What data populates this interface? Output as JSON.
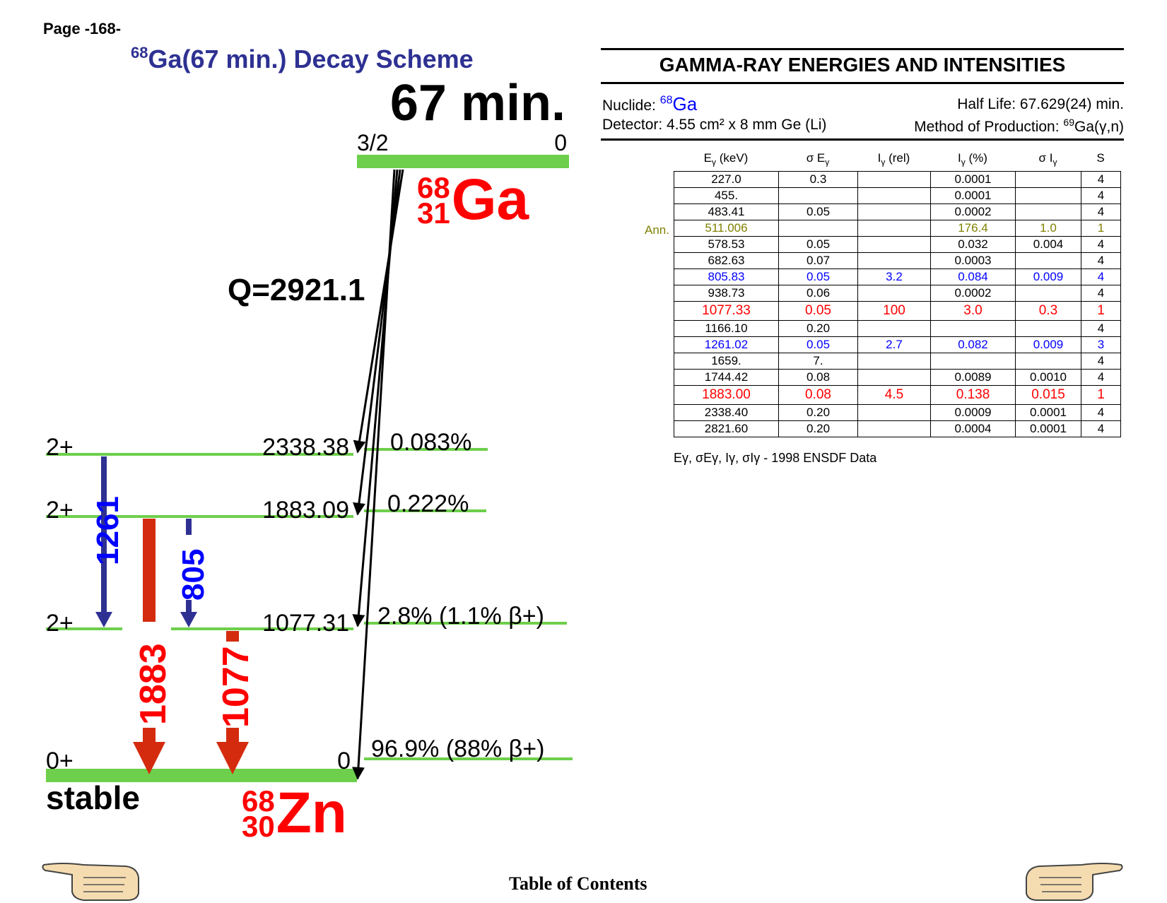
{
  "page": {
    "number": "Page -168-"
  },
  "scheme": {
    "title_super": "68",
    "title": "Ga(67 min.) Decay Scheme",
    "half_life": "67 min.",
    "parent": {
      "spin": "3/2",
      "energy": "0",
      "A": "68",
      "Z": "31",
      "element": "Ga"
    },
    "q_value": "Q=2921.1",
    "levels": [
      {
        "spin": "2+",
        "energy": "2338.38",
        "branch": "0.083%"
      },
      {
        "spin": "2+",
        "energy": "1883.09",
        "branch": "0.222%"
      },
      {
        "spin": "2+",
        "energy": "1077.31",
        "branch": "2.8% (1.1% β+)"
      },
      {
        "spin": "0+",
        "energy": "0",
        "branch": "96.9% (88% β+)"
      }
    ],
    "gammas": [
      {
        "label": "1261",
        "color": "#2e3192"
      },
      {
        "label": "1883",
        "color": "#ff0000"
      },
      {
        "label": "805",
        "color": "#2e3192"
      },
      {
        "label": "1077",
        "color": "#ff0000"
      }
    ],
    "stable_label": "stable",
    "daughter": {
      "A": "68",
      "Z": "30",
      "element": "Zn"
    }
  },
  "table": {
    "title": "GAMMA-RAY ENERGIES AND INTENSITIES",
    "nuclide_label": "Nuclide: ",
    "nuclide_super": "68",
    "nuclide_el": "Ga",
    "half_life": "Half Life: 67.629(24) min.",
    "detector": "Detector: 4.55 cm² x 8 mm Ge (Li)",
    "production_label": "Method of Production: ",
    "production_super": "69",
    "production": "Ga(γ,n)",
    "headers": {
      "e": "E",
      "e_unit": " (keV)",
      "se": "σ E",
      "irel": "I",
      "irel_unit": " (rel)",
      "ipct": "I",
      "ipct_unit": " (%)",
      "si": "σ I",
      "s": "S",
      "gamma_sub": "γ"
    },
    "ann_label": "Ann.",
    "rows": [
      {
        "e": "227.0",
        "se": "0.3",
        "irel": "",
        "ipct": "0.0001",
        "si": "",
        "s": "4",
        "color": "#000000"
      },
      {
        "e": "455.",
        "se": "",
        "irel": "",
        "ipct": "0.0001",
        "si": "",
        "s": "4",
        "color": "#000000"
      },
      {
        "e": "483.41",
        "se": "0.05",
        "irel": "",
        "ipct": "0.0002",
        "si": "",
        "s": "4",
        "color": "#000000"
      },
      {
        "e": "511.006",
        "se": "",
        "irel": "",
        "ipct": "176.4",
        "si": "1.0",
        "s": "1",
        "color": "#808000"
      },
      {
        "e": "578.53",
        "se": "0.05",
        "irel": "",
        "ipct": "0.032",
        "si": "0.004",
        "s": "4",
        "color": "#000000"
      },
      {
        "e": "682.63",
        "se": "0.07",
        "irel": "",
        "ipct": "0.0003",
        "si": "",
        "s": "4",
        "color": "#000000"
      },
      {
        "e": "805.83",
        "se": "0.05",
        "irel": "3.2",
        "ipct": "0.084",
        "si": "0.009",
        "s": "4",
        "color": "#0000ff"
      },
      {
        "e": "938.73",
        "se": "0.06",
        "irel": "",
        "ipct": "0.0002",
        "si": "",
        "s": "4",
        "color": "#000000"
      },
      {
        "e": "1077.33",
        "se": "0.05",
        "irel": "100",
        "ipct": "3.0",
        "si": "0.3",
        "s": "1",
        "color": "#ff0000",
        "big": true
      },
      {
        "e": "1166.10",
        "se": "0.20",
        "irel": "",
        "ipct": "",
        "si": "",
        "s": "4",
        "color": "#000000"
      },
      {
        "e": "1261.02",
        "se": "0.05",
        "irel": "2.7",
        "ipct": "0.082",
        "si": "0.009",
        "s": "3",
        "color": "#0000ff"
      },
      {
        "e": "1659.",
        "se": "7.",
        "irel": "",
        "ipct": "",
        "si": "",
        "s": "4",
        "color": "#000000"
      },
      {
        "e": "1744.42",
        "se": "0.08",
        "irel": "",
        "ipct": "0.0089",
        "si": "0.0010",
        "s": "4",
        "color": "#000000"
      },
      {
        "e": "1883.00",
        "se": "0.08",
        "irel": "4.5",
        "ipct": "0.138",
        "si": "0.015",
        "s": "1",
        "color": "#ff0000",
        "big": true
      },
      {
        "e": "2338.40",
        "se": "0.20",
        "irel": "",
        "ipct": "0.0009",
        "si": "0.0001",
        "s": "4",
        "color": "#000000"
      },
      {
        "e": "2821.60",
        "se": "0.20",
        "irel": "",
        "ipct": "0.0004",
        "si": "0.0001",
        "s": "4",
        "color": "#000000"
      }
    ],
    "footnote_vars": "Eγ, σEγ, Iγ, σIγ",
    "footnote_dash": " - ",
    "footnote_src": "1998 ENSDF Data"
  },
  "footer": {
    "toc": "Table of Contents",
    "prev_icon": "pointing-hand-left-icon",
    "next_icon": "pointing-hand-right-icon"
  },
  "colors": {
    "level": "#6dcf4b",
    "red": "#ff0000",
    "arrow_red": "#d42b0e",
    "blue": "#2e3192",
    "title": "#2e3192"
  }
}
